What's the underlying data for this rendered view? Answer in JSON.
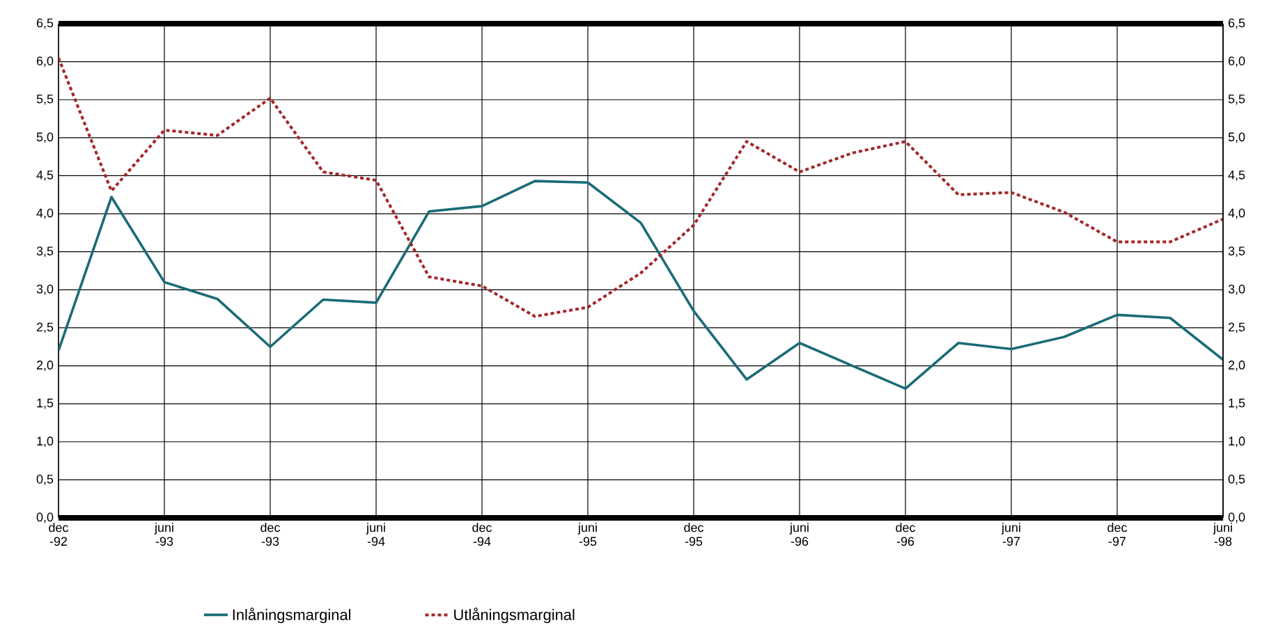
{
  "chart_data": {
    "type": "line",
    "categories": [
      "dec -92",
      null,
      "juni -93",
      null,
      "dec -93",
      null,
      "juni -94",
      null,
      "dec -94",
      null,
      "juni -95",
      null,
      "dec -95",
      null,
      "juni -96",
      null,
      "dec -96",
      null,
      "juni -97",
      null,
      "dec -97",
      null,
      "juni -98"
    ],
    "series": [
      {
        "name": "Inlåningsmarginal",
        "color": "#1a6b77",
        "line_style": "solid",
        "values": [
          2.2,
          4.22,
          3.1,
          2.88,
          2.25,
          2.87,
          2.83,
          4.03,
          4.1,
          4.43,
          4.41,
          3.88,
          2.72,
          1.82,
          2.3,
          2.0,
          1.7,
          2.3,
          2.22,
          2.38,
          2.67,
          2.63,
          2.08
        ]
      },
      {
        "name": "Utlåningsmarginal",
        "color": "#a3262a",
        "line_style": "dotted",
        "values": [
          6.05,
          4.3,
          5.1,
          5.03,
          5.52,
          4.55,
          4.44,
          3.17,
          3.05,
          2.65,
          2.77,
          3.22,
          3.85,
          4.95,
          4.55,
          4.8,
          4.95,
          4.25,
          4.28,
          4.02,
          3.63,
          3.63,
          3.93
        ]
      }
    ],
    "ylim": [
      0,
      6.5
    ],
    "yticks": [
      {
        "value": 0,
        "label": "0,0"
      },
      {
        "value": 0.5,
        "label": "0,5"
      },
      {
        "value": 1,
        "label": "1,0"
      },
      {
        "value": 1.5,
        "label": "1,5"
      },
      {
        "value": 2,
        "label": "2,0"
      },
      {
        "value": 2.5,
        "label": "2,5"
      },
      {
        "value": 3,
        "label": "3,0"
      },
      {
        "value": 3.5,
        "label": "3,5"
      },
      {
        "value": 4,
        "label": "4,0"
      },
      {
        "value": 4.5,
        "label": "4,5"
      },
      {
        "value": 5,
        "label": "5,0"
      },
      {
        "value": 5.5,
        "label": "5,5"
      },
      {
        "value": 6,
        "label": "6,0"
      },
      {
        "value": 6.5,
        "label": "6,5"
      }
    ],
    "y2lim": [
      0,
      6.5
    ],
    "y2ticks": [
      {
        "value": 0,
        "label": "0,0"
      },
      {
        "value": 0.5,
        "label": "0,5"
      },
      {
        "value": 1,
        "label": "1,0"
      },
      {
        "value": 1.5,
        "label": "1,5"
      },
      {
        "value": 2,
        "label": "2,0"
      },
      {
        "value": 2.5,
        "label": "2,5"
      },
      {
        "value": 3,
        "label": "3,0"
      },
      {
        "value": 3.5,
        "label": "3,5"
      },
      {
        "value": 4,
        "label": "4,0"
      },
      {
        "value": 4.5,
        "label": "4,5"
      },
      {
        "value": 5,
        "label": "5,0"
      },
      {
        "value": 5.5,
        "label": "5,5"
      },
      {
        "value": 6,
        "label": "6,0"
      },
      {
        "value": 6.5,
        "label": "6,5"
      }
    ],
    "grid": true,
    "legend": "bottom"
  }
}
